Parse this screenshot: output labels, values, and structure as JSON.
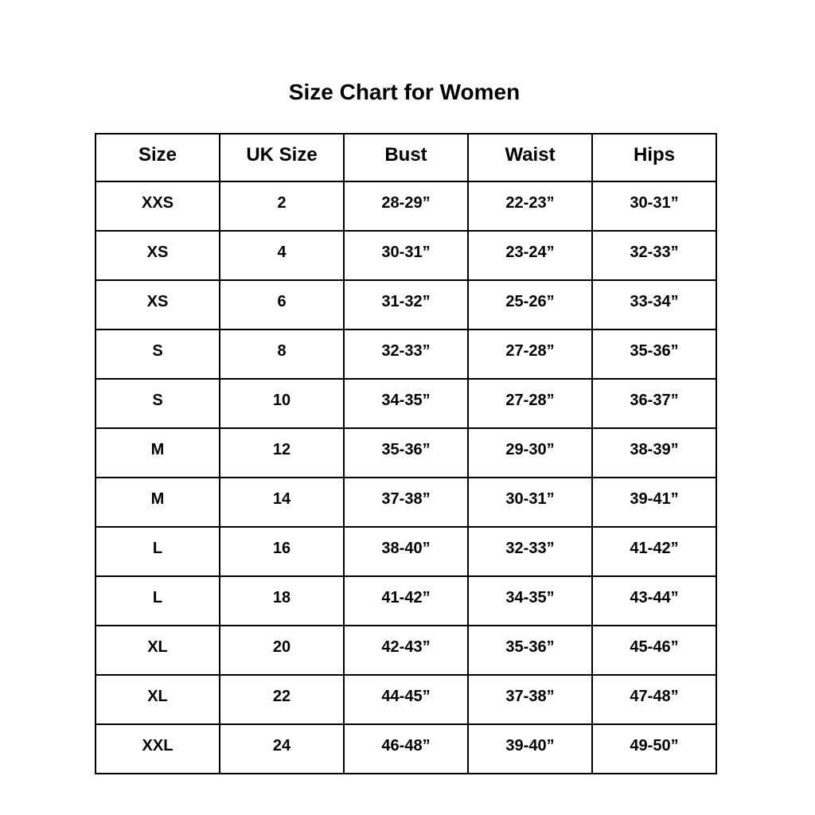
{
  "title": "Size Chart for Women",
  "columns": [
    "Size",
    "UK Size",
    "Bust",
    "Waist",
    "Hips"
  ],
  "rows": [
    [
      "XXS",
      "2",
      "28-29”",
      "22-23”",
      "30-31”"
    ],
    [
      "XS",
      "4",
      "30-31”",
      "23-24”",
      "32-33”"
    ],
    [
      "XS",
      "6",
      "31-32”",
      "25-26”",
      "33-34”"
    ],
    [
      "S",
      "8",
      "32-33”",
      "27-28”",
      "35-36”"
    ],
    [
      "S",
      "10",
      "34-35”",
      "27-28”",
      "36-37”"
    ],
    [
      "M",
      "12",
      "35-36”",
      "29-30”",
      "38-39”"
    ],
    [
      "M",
      "14",
      "37-38”",
      "30-31”",
      "39-41”"
    ],
    [
      "L",
      "16",
      "38-40”",
      "32-33”",
      "41-42”"
    ],
    [
      "L",
      "18",
      "41-42”",
      "34-35”",
      "43-44”"
    ],
    [
      "XL",
      "20",
      "42-43”",
      "35-36”",
      "45-46”"
    ],
    [
      "XL",
      "22",
      "44-45”",
      "37-38”",
      "47-48”"
    ],
    [
      "XXL",
      "24",
      "46-48”",
      "39-40”",
      "49-50”"
    ]
  ]
}
